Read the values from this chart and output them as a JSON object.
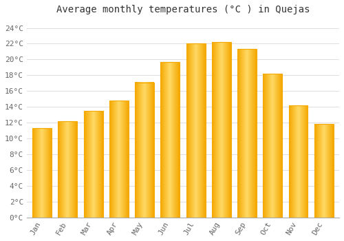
{
  "title": "Average monthly temperatures (°C ) in Quejas",
  "months": [
    "Jan",
    "Feb",
    "Mar",
    "Apr",
    "May",
    "Jun",
    "Jul",
    "Aug",
    "Sep",
    "Oct",
    "Nov",
    "Dec"
  ],
  "values": [
    11.3,
    12.2,
    13.5,
    14.8,
    17.1,
    19.7,
    22.0,
    22.2,
    21.3,
    18.2,
    14.2,
    11.8
  ],
  "bar_color_center": "#FFD966",
  "bar_color_edge": "#F5A800",
  "background_color": "#FFFFFF",
  "grid_color": "#E0E0E0",
  "text_color": "#666666",
  "title_color": "#333333",
  "ylim": [
    0,
    25
  ],
  "yticks": [
    0,
    2,
    4,
    6,
    8,
    10,
    12,
    14,
    16,
    18,
    20,
    22,
    24
  ],
  "title_fontsize": 10,
  "tick_fontsize": 8,
  "bar_width": 0.75
}
